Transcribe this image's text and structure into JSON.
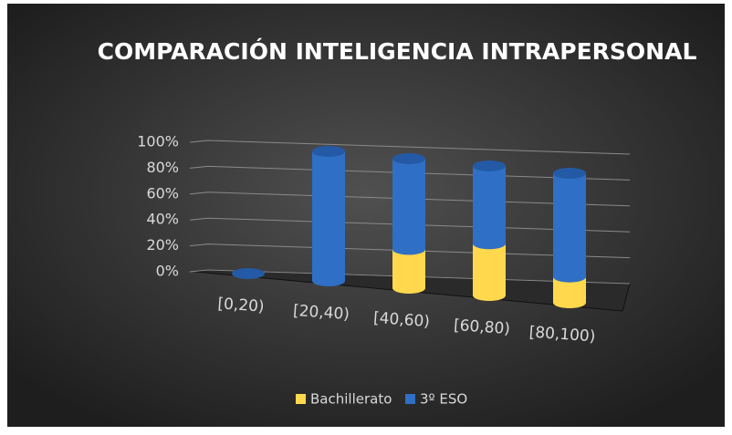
{
  "chart_data": {
    "type": "bar3d_stacked",
    "title": "COMPARACIÓN INTELIGENCIA INTRAPERSONAL",
    "categories": [
      "[0,20)",
      "[20,40)",
      "[40,60)",
      "[60,80)",
      "[80,100)"
    ],
    "series": [
      {
        "name": "Bachillerato",
        "color": "#ffd84d",
        "values": [
          0,
          0,
          30,
          40,
          20
        ]
      },
      {
        "name": "3º ESO",
        "color": "#2f6fc6",
        "values": [
          0,
          100,
          70,
          60,
          80
        ]
      }
    ],
    "ylim": [
      0,
      100
    ],
    "yticks": [
      {
        "value": 0,
        "label": "0%"
      },
      {
        "value": 20,
        "label": "20%"
      },
      {
        "value": 40,
        "label": "40%"
      },
      {
        "value": 60,
        "label": "60%"
      },
      {
        "value": 80,
        "label": "80%"
      },
      {
        "value": 100,
        "label": "100%"
      }
    ],
    "grid": true,
    "legend": "bottom"
  }
}
